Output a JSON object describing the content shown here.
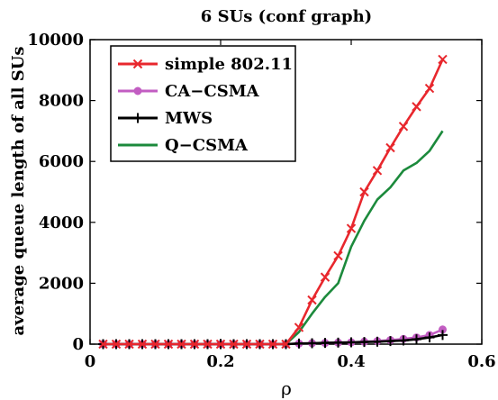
{
  "chart_data": {
    "type": "line",
    "title": "6 SUs (conf graph)",
    "xlabel": "ρ",
    "ylabel": "average queue length of all SUs",
    "xlim": [
      0,
      0.6
    ],
    "ylim": [
      0,
      10000
    ],
    "xticks": [
      0,
      0.2,
      0.4,
      0.6
    ],
    "xtick_labels": [
      "0",
      "0.2",
      "0.4",
      "0.6"
    ],
    "yticks": [
      0,
      2000,
      4000,
      6000,
      8000,
      10000
    ],
    "ytick_labels": [
      "0",
      "2000",
      "4000",
      "6000",
      "8000",
      "10000"
    ],
    "grid": false,
    "legend_position": "top-left",
    "x": [
      0.02,
      0.04,
      0.06,
      0.08,
      0.1,
      0.12,
      0.14,
      0.16,
      0.18,
      0.2,
      0.22,
      0.24,
      0.26,
      0.28,
      0.3,
      0.32,
      0.34,
      0.36,
      0.38,
      0.4,
      0.42,
      0.44,
      0.46,
      0.48,
      0.5,
      0.52,
      0.54
    ],
    "series": [
      {
        "name": "simple 802.11",
        "color": "#e8272d",
        "marker": "x",
        "values": [
          0,
          0,
          0,
          0,
          0,
          0,
          0,
          0,
          0,
          0,
          0,
          0,
          0,
          0,
          0,
          550,
          1450,
          2200,
          2900,
          3800,
          5000,
          5700,
          6450,
          7150,
          7800,
          8400,
          9350
        ]
      },
      {
        "name": "CA−CSMA",
        "color": "#c25dc2",
        "marker": "o",
        "values": [
          0,
          0,
          0,
          0,
          0,
          0,
          0,
          0,
          0,
          0,
          0,
          0,
          0,
          0,
          0,
          20,
          30,
          40,
          50,
          60,
          80,
          100,
          130,
          170,
          220,
          300,
          480
        ]
      },
      {
        "name": "MWS",
        "color": "#000000",
        "marker": "+",
        "values": [
          0,
          0,
          0,
          0,
          0,
          0,
          0,
          0,
          0,
          0,
          0,
          0,
          0,
          0,
          0,
          20,
          30,
          40,
          50,
          60,
          70,
          80,
          100,
          120,
          160,
          220,
          300
        ]
      },
      {
        "name": "Q−CSMA",
        "color": "#1c8a3c",
        "marker": "none",
        "values": [
          0,
          0,
          0,
          0,
          0,
          0,
          0,
          0,
          0,
          0,
          0,
          0,
          0,
          0,
          0,
          400,
          1000,
          1550,
          2000,
          3200,
          4050,
          4750,
          5150,
          5700,
          5950,
          6350,
          7000
        ]
      }
    ]
  }
}
